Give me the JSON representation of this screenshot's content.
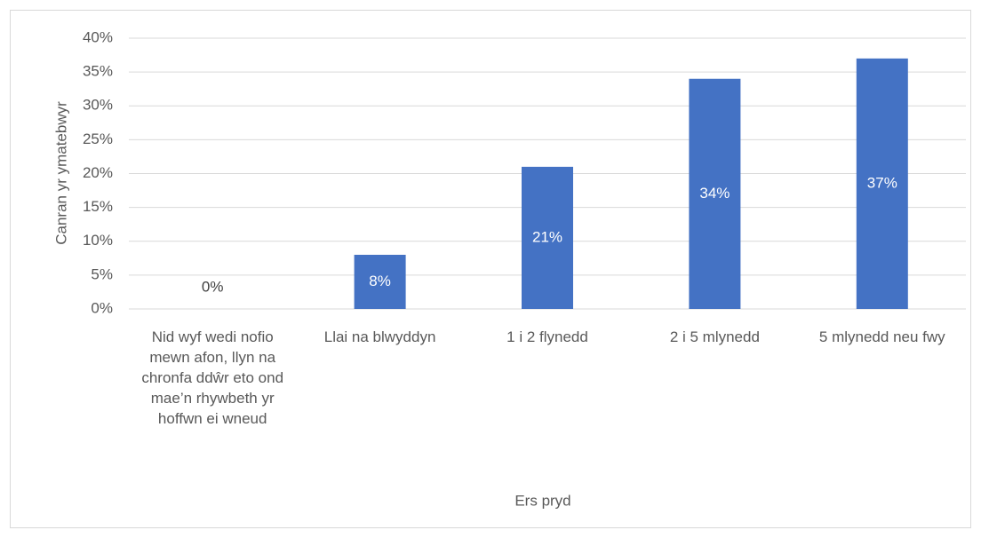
{
  "chart_data": {
    "type": "bar",
    "categories": [
      "Nid wyf wedi nofio mewn afon, llyn na chronfa ddŵr eto ond mae’n rhywbeth yr hoffwn ei wneud",
      "Llai na blwyddyn",
      "1 i 2 flynedd",
      "2 i 5 mlynedd",
      "5 mlynedd neu fwy"
    ],
    "values": [
      0,
      8,
      21,
      34,
      37
    ],
    "value_labels": [
      "0%",
      "8%",
      "21%",
      "34%",
      "37%"
    ],
    "color": "#4472c4",
    "xlabel": "Ers pryd",
    "ylabel": "Canran yr ymatebwyr",
    "ylim": [
      0,
      40
    ],
    "yticks": [
      {
        "value": 0,
        "label": "0%"
      },
      {
        "value": 5,
        "label": "5%"
      },
      {
        "value": 10,
        "label": "10%"
      },
      {
        "value": 15,
        "label": "15%"
      },
      {
        "value": 20,
        "label": "20%"
      },
      {
        "value": 25,
        "label": "25%"
      },
      {
        "value": 30,
        "label": "30%"
      },
      {
        "value": 35,
        "label": "35%"
      },
      {
        "value": 40,
        "label": "40%"
      }
    ],
    "grid": true
  }
}
